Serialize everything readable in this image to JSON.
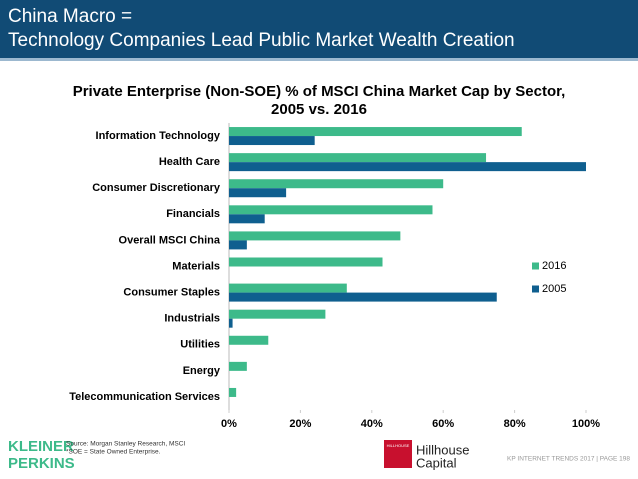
{
  "header": {
    "line1": "China Macro =",
    "line2": "Technology Companies Lead Public Market Wealth Creation"
  },
  "chart_data": {
    "type": "hbar",
    "title": [
      "Private Enterprise (Non-SOE) % of MSCI China Market Cap by Sector,",
      "2005 vs. 2016"
    ],
    "categories": [
      "Information Technology",
      "Health Care",
      "Consumer Discretionary",
      "Financials",
      "Overall MSCI China",
      "Materials",
      "Consumer Staples",
      "Industrials",
      "Utilities",
      "Energy",
      "Telecommunication Services"
    ],
    "series": [
      {
        "name": "2016",
        "color": "#3dba8a",
        "values": [
          82,
          72,
          60,
          57,
          48,
          43,
          33,
          27,
          11,
          5,
          2
        ]
      },
      {
        "name": "2005",
        "color": "#0f5f8f",
        "values": [
          24,
          100,
          16,
          10,
          5,
          0,
          75,
          1,
          0,
          0,
          0
        ]
      }
    ],
    "xlim": [
      0,
      100
    ],
    "xticks": [
      {
        "value": 0,
        "label": "0%"
      },
      {
        "value": 20,
        "label": "20%"
      },
      {
        "value": 40,
        "label": "40%"
      },
      {
        "value": 60,
        "label": "60%"
      },
      {
        "value": 80,
        "label": "80%"
      },
      {
        "value": 100,
        "label": "100%"
      }
    ],
    "grid": false,
    "legend": "right"
  },
  "footer": {
    "logo": [
      "KLEINER",
      "PERKINS"
    ],
    "source": [
      "Source: Morgan Stanley Research, MSCI",
      "*SOE = State Owned Enterprise."
    ],
    "partner_badge": "HILLHOUSE",
    "partner": [
      "Hillhouse",
      "Capital"
    ],
    "page": "KP INTERNET TRENDS 2017  |  PAGE 198"
  }
}
